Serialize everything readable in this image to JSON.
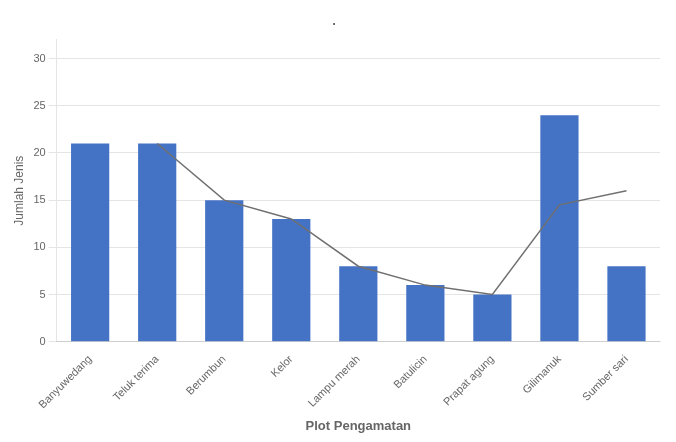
{
  "chart_data": {
    "type": "bar",
    "title": ".",
    "xlabel": "Plot Pengamatan",
    "ylabel": "Jumlah Jenis",
    "categories": [
      "Banyuwedang",
      "Teluk terima",
      "Berumbun",
      "Kelor",
      "Lampu merah",
      "Batulicin",
      "Prapat agung",
      "Gilimanuk",
      "Sumber sari"
    ],
    "series": [
      {
        "type": "bar",
        "color": "#4472C4",
        "values": [
          21,
          21,
          15,
          13,
          8,
          6,
          5,
          24,
          8
        ]
      },
      {
        "type": "line",
        "color": "#707070",
        "values": [
          null,
          21,
          15,
          13,
          8,
          6,
          5,
          14.5,
          16
        ]
      }
    ],
    "ylim": [
      0,
      32
    ],
    "yticks": [
      0,
      5,
      10,
      15,
      20,
      25,
      30
    ],
    "grid": true
  }
}
